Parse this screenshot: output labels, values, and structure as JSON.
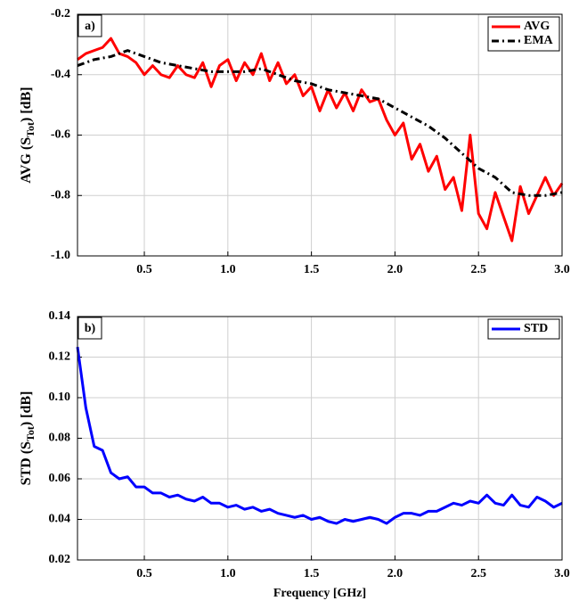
{
  "chart_data": [
    {
      "type": "line",
      "annotation": "a)",
      "ylabel": [
        "AVG (S",
        "Tot",
        ") [dB]"
      ],
      "x": [
        0.1,
        0.15,
        0.2,
        0.25,
        0.3,
        0.35,
        0.4,
        0.45,
        0.5,
        0.55,
        0.6,
        0.65,
        0.7,
        0.75,
        0.8,
        0.85,
        0.9,
        0.95,
        1.0,
        1.05,
        1.1,
        1.15,
        1.2,
        1.25,
        1.3,
        1.35,
        1.4,
        1.45,
        1.5,
        1.55,
        1.6,
        1.65,
        1.7,
        1.75,
        1.8,
        1.85,
        1.9,
        1.95,
        2.0,
        2.05,
        2.1,
        2.15,
        2.2,
        2.25,
        2.3,
        2.35,
        2.4,
        2.45,
        2.5,
        2.55,
        2.6,
        2.65,
        2.7,
        2.75,
        2.8,
        2.85,
        2.9,
        2.95,
        3.0
      ],
      "series": [
        {
          "name": "AVG",
          "color": "#ff0000",
          "style": "solid",
          "values": [
            -0.35,
            -0.33,
            -0.32,
            -0.31,
            -0.28,
            -0.33,
            -0.34,
            -0.36,
            -0.4,
            -0.37,
            -0.4,
            -0.41,
            -0.37,
            -0.4,
            -0.41,
            -0.36,
            -0.44,
            -0.37,
            -0.35,
            -0.42,
            -0.36,
            -0.4,
            -0.33,
            -0.42,
            -0.36,
            -0.43,
            -0.4,
            -0.47,
            -0.44,
            -0.52,
            -0.45,
            -0.51,
            -0.46,
            -0.52,
            -0.45,
            -0.49,
            -0.48,
            -0.55,
            -0.6,
            -0.56,
            -0.68,
            -0.63,
            -0.72,
            -0.67,
            -0.78,
            -0.74,
            -0.85,
            -0.6,
            -0.86,
            -0.91,
            -0.79,
            -0.87,
            -0.95,
            -0.77,
            -0.86,
            -0.8,
            -0.74,
            -0.8,
            -0.76
          ]
        },
        {
          "name": "EMA",
          "color": "#000000",
          "style": "dash-dot",
          "values": [
            -0.37,
            -0.36,
            -0.35,
            -0.345,
            -0.34,
            -0.33,
            -0.32,
            -0.33,
            -0.34,
            -0.35,
            -0.36,
            -0.365,
            -0.37,
            -0.375,
            -0.38,
            -0.385,
            -0.39,
            -0.39,
            -0.39,
            -0.39,
            -0.39,
            -0.385,
            -0.38,
            -0.39,
            -0.4,
            -0.41,
            -0.42,
            -0.425,
            -0.43,
            -0.44,
            -0.45,
            -0.455,
            -0.46,
            -0.465,
            -0.47,
            -0.475,
            -0.48,
            -0.495,
            -0.51,
            -0.525,
            -0.54,
            -0.555,
            -0.57,
            -0.59,
            -0.61,
            -0.635,
            -0.66,
            -0.685,
            -0.71,
            -0.725,
            -0.74,
            -0.765,
            -0.79,
            -0.795,
            -0.8,
            -0.8,
            -0.8,
            -0.795,
            -0.79
          ]
        }
      ],
      "xlim": [
        0.1,
        3.0
      ],
      "xticks": [
        0.5,
        {
          "value": 1,
          "label": "1.0"
        },
        1.5,
        {
          "value": 2,
          "label": "2.0"
        },
        2.5,
        {
          "value": 3,
          "label": "3.0"
        }
      ],
      "ylim": [
        -1.0,
        -0.2
      ],
      "yticks": [
        {
          "value": -1,
          "label": "-1.0"
        },
        -0.8,
        -0.6,
        -0.4,
        -0.2
      ],
      "grid": true,
      "legend": "upper-right"
    },
    {
      "type": "line",
      "annotation": "b)",
      "ylabel": [
        "STD (S",
        "Tot",
        ") [dB]"
      ],
      "xlabel": "Frequency [GHz]",
      "x": [
        0.1,
        0.15,
        0.2,
        0.25,
        0.3,
        0.35,
        0.4,
        0.45,
        0.5,
        0.55,
        0.6,
        0.65,
        0.7,
        0.75,
        0.8,
        0.85,
        0.9,
        0.95,
        1.0,
        1.05,
        1.1,
        1.15,
        1.2,
        1.25,
        1.3,
        1.35,
        1.4,
        1.45,
        1.5,
        1.55,
        1.6,
        1.65,
        1.7,
        1.75,
        1.8,
        1.85,
        1.9,
        1.95,
        2.0,
        2.05,
        2.1,
        2.15,
        2.2,
        2.25,
        2.3,
        2.35,
        2.4,
        2.45,
        2.5,
        2.55,
        2.6,
        2.65,
        2.7,
        2.75,
        2.8,
        2.85,
        2.9,
        2.95,
        3.0
      ],
      "series": [
        {
          "name": "STD",
          "color": "#0000ff",
          "style": "solid",
          "values": [
            0.125,
            0.095,
            0.076,
            0.074,
            0.063,
            0.06,
            0.061,
            0.056,
            0.056,
            0.053,
            0.053,
            0.051,
            0.052,
            0.05,
            0.049,
            0.051,
            0.048,
            0.048,
            0.046,
            0.047,
            0.045,
            0.046,
            0.044,
            0.045,
            0.043,
            0.042,
            0.041,
            0.042,
            0.04,
            0.041,
            0.039,
            0.038,
            0.04,
            0.039,
            0.04,
            0.041,
            0.04,
            0.038,
            0.041,
            0.043,
            0.043,
            0.042,
            0.044,
            0.044,
            0.046,
            0.048,
            0.047,
            0.049,
            0.048,
            0.052,
            0.048,
            0.047,
            0.052,
            0.047,
            0.046,
            0.051,
            0.049,
            0.046,
            0.048
          ]
        }
      ],
      "xlim": [
        0.1,
        3.0
      ],
      "xticks": [
        0.5,
        {
          "value": 1,
          "label": "1.0"
        },
        1.5,
        {
          "value": 2,
          "label": "2.0"
        },
        2.5,
        {
          "value": 3,
          "label": "3.0"
        }
      ],
      "ylim": [
        0.02,
        0.14
      ],
      "yticks": [
        0.02,
        0.04,
        0.06,
        0.08,
        {
          "value": 0.1,
          "label": "0.10"
        },
        0.12,
        0.14
      ],
      "grid": true,
      "legend": "upper-right"
    }
  ]
}
